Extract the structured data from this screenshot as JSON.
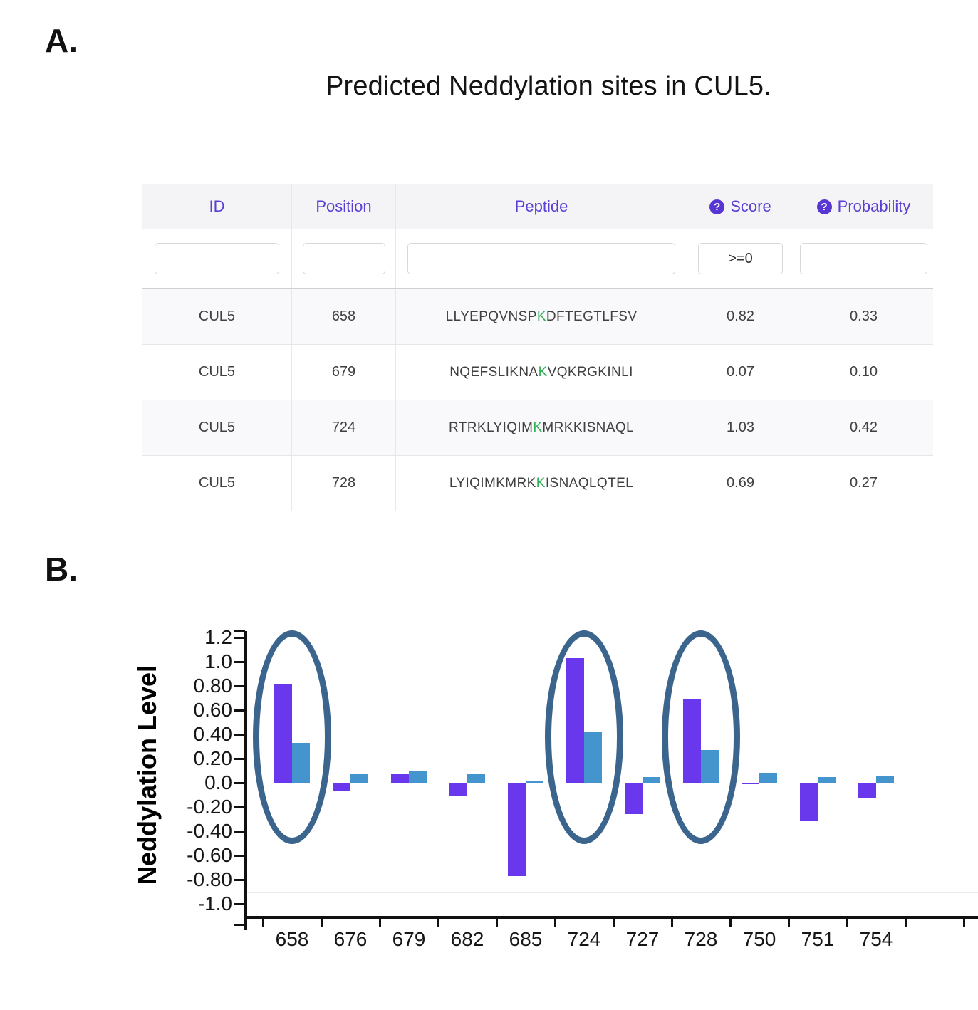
{
  "panel_a": {
    "label": "A.",
    "title": "Predicted Neddylation sites in CUL5.",
    "table": {
      "columns": [
        "ID",
        "Position",
        "Peptide",
        "Score",
        "Probability"
      ],
      "filters": {
        "id": "",
        "position": "",
        "peptide": "",
        "score": ">=0",
        "probability": ""
      },
      "rows": [
        {
          "id": "CUL5",
          "position": "658",
          "peptide_pre": "LLYEPQVNSP",
          "peptide_site": "K",
          "peptide_post": "DFTEGTLFSV",
          "score": "0.82",
          "probability": "0.33"
        },
        {
          "id": "CUL5",
          "position": "679",
          "peptide_pre": "NQEFSLIKNA",
          "peptide_site": "K",
          "peptide_post": "VQKRGKINLI",
          "score": "0.07",
          "probability": "0.10"
        },
        {
          "id": "CUL5",
          "position": "724",
          "peptide_pre": "RTRKLYIQIM",
          "peptide_site": "K",
          "peptide_post": "MRKKISNAQL",
          "score": "1.03",
          "probability": "0.42"
        },
        {
          "id": "CUL5",
          "position": "728",
          "peptide_pre": "LYIQIMKMRK",
          "peptide_site": "K",
          "peptide_post": "ISNAQLQTEL",
          "score": "0.69",
          "probability": "0.27"
        }
      ]
    }
  },
  "panel_b": {
    "label": "B."
  },
  "chart_data": {
    "type": "bar",
    "categories": [
      "658",
      "676",
      "679",
      "682",
      "685",
      "724",
      "727",
      "728",
      "750",
      "751",
      "754"
    ],
    "series": [
      {
        "name": "Score",
        "color": "#6a38ec",
        "values": [
          0.82,
          -0.07,
          0.07,
          -0.11,
          -0.77,
          1.03,
          -0.26,
          0.69,
          -0.01,
          -0.32,
          -0.13
        ]
      },
      {
        "name": "Probability",
        "color": "#4494cd",
        "values": [
          0.33,
          0.07,
          0.1,
          0.07,
          0.01,
          0.42,
          0.05,
          0.27,
          0.08,
          0.05,
          0.06
        ]
      }
    ],
    "circled_categories": [
      "658",
      "724",
      "728"
    ],
    "ylabel": "Neddylation Level",
    "xlabel": "",
    "ylim": [
      -1.0,
      1.2
    ],
    "ytick_labels": [
      "1.2",
      "1.0",
      "0.80",
      "0.60",
      "0.40",
      "0.20",
      "0.0",
      "-0.20",
      "-0.40",
      "-0.60",
      "-0.80",
      "-1.0"
    ],
    "grid": false,
    "legend": "none",
    "highlight_color": "#3b658d"
  },
  "icons": {
    "help": "?"
  },
  "colors": {
    "header_text": "#5b3ed2",
    "help_badge": "#5736d3",
    "site_residue": "#2fae57",
    "score_bar": "#6a38ec",
    "probability_bar": "#4494cd",
    "ellipse": "#3b658d"
  }
}
